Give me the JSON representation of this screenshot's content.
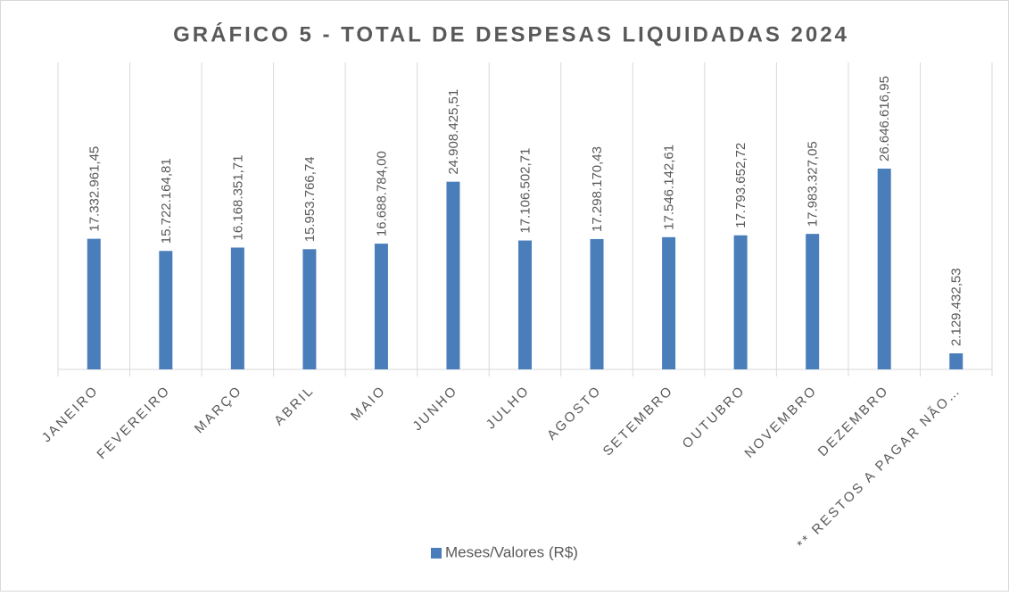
{
  "chart_data": {
    "type": "bar",
    "title": "GRÁFICO 5 - TOTAL DE DESPESAS LIQUIDADAS 2024",
    "categories": [
      "JANEIRO",
      "FEVEREIRO",
      "MARÇO",
      "ABRIL",
      "MAIO",
      "JUNHO",
      "JULHO",
      "AGOSTO",
      "SETEMBRO",
      "OUTUBRO",
      "NOVEMBRO",
      "DEZEMBRO",
      "** RESTOS A PAGAR NÃO…"
    ],
    "series": [
      {
        "name": "Meses/Valores (R$)",
        "color": "#4a7ebb",
        "values": [
          17332961.45,
          15722164.81,
          16168351.71,
          15953766.74,
          16688784.0,
          24908425.51,
          17106502.71,
          17298170.43,
          17546142.61,
          17793652.72,
          17983327.05,
          26646616.95,
          2129432.53
        ],
        "value_labels": [
          "17.332.961,45",
          "15.722.164,81",
          "16.168.351,71",
          "15.953.766,74",
          "16.688.784,00",
          "24.908.425,51",
          "17.106.502,71",
          "17.298.170,43",
          "17.546.142,61",
          "17.793.652,72",
          "17.983.327,05",
          "26.646.616,95",
          "2.129.432,53"
        ]
      }
    ],
    "legend": "bottom"
  }
}
